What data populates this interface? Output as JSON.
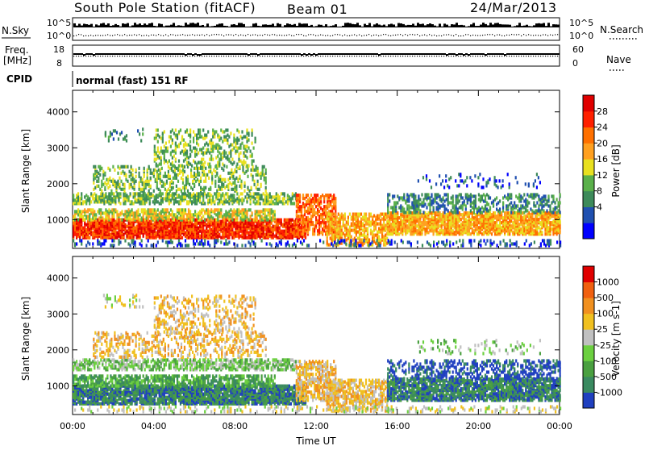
{
  "header": {
    "station_title": "South Pole Station (fitACF)",
    "beam": "Beam 01",
    "date": "24/Mar/2013"
  },
  "top_panels": {
    "nsky_label": "N.Sky",
    "nsearch_label": "N.Search",
    "nsky_ticks": [
      "10^5",
      "10^0"
    ],
    "nsearch_ticks": [
      "10^5",
      "10^0"
    ],
    "freq_label_line1": "Freq.",
    "freq_label_line2": "[MHz]",
    "freq_ticks": [
      "18",
      "8"
    ],
    "nave_label": "Nave",
    "nave_ticks": [
      "60",
      "0"
    ],
    "cpid_label": "CPID",
    "cpid_value": "normal (fast) 151 RF"
  },
  "chart_data": [
    {
      "type": "heatmap",
      "name": "power",
      "ylabel": "Slant Range [km]",
      "ylim": [
        200,
        4600
      ],
      "yticks": [
        1000,
        2000,
        3000,
        4000
      ],
      "xlim": [
        0,
        24
      ],
      "colorbar_label": "Power [dB]",
      "colorbar_ticks": [
        "28",
        "24",
        "20",
        "16",
        "12",
        "8",
        "4"
      ],
      "colorbar_colors": [
        "#0000ff",
        "#2050b0",
        "#3d8a5a",
        "#5ab04a",
        "#e8e020",
        "#ffa020",
        "#ff7000",
        "#ff2000",
        "#e00000"
      ]
    },
    {
      "type": "heatmap",
      "name": "velocity",
      "ylabel": "Slant Range [km]",
      "ylim": [
        200,
        4600
      ],
      "yticks": [
        1000,
        2000,
        3000,
        4000
      ],
      "xlim": [
        0,
        24
      ],
      "xlabel": "Time UT",
      "xticks": [
        "00:00",
        "04:00",
        "08:00",
        "12:00",
        "16:00",
        "20:00",
        "00:00"
      ],
      "colorbar_label": "Velocity [m s-1]",
      "colorbar_ticks": [
        "1000",
        "500",
        "100",
        "25",
        "-25",
        "-100",
        "-500",
        "-1000"
      ],
      "colorbar_colors": [
        "#2040c0",
        "#3a8a60",
        "#4aa040",
        "#6cd040",
        "#c0c0c0",
        "#f0c020",
        "#f09020",
        "#f06010",
        "#e00000"
      ]
    }
  ]
}
